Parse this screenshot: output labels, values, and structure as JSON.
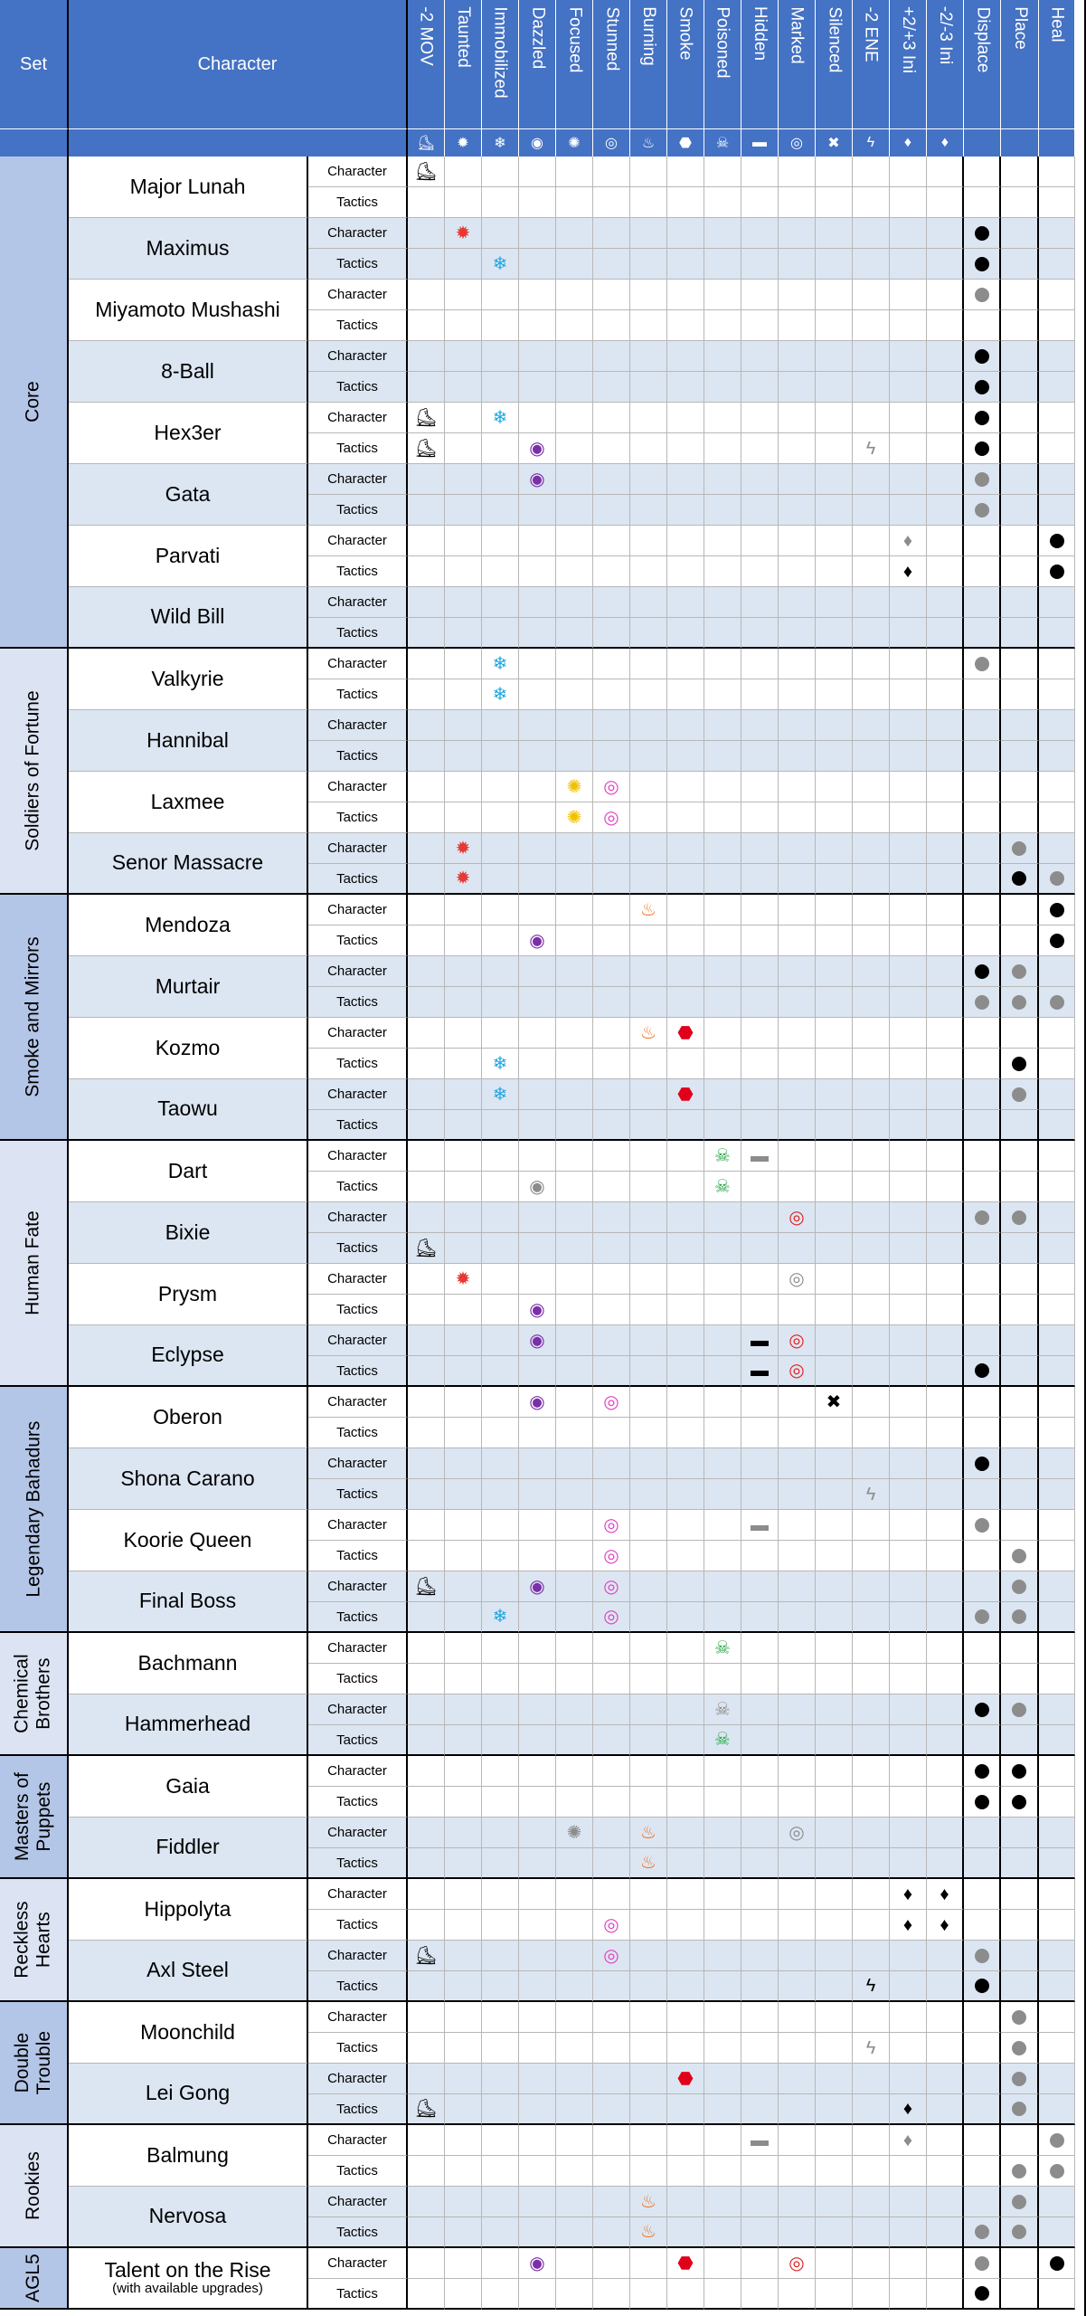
{
  "header": {
    "set_label": "Set",
    "character_label": "Character"
  },
  "columns": [
    {
      "key": "mov",
      "label": "-2 MOV",
      "icon": "boot-icon",
      "glyph": "⛸"
    },
    {
      "key": "taunted",
      "label": "Taunted",
      "icon": "anger-icon",
      "glyph": "✹"
    },
    {
      "key": "immobilized",
      "label": "Immobilized",
      "icon": "snowflake-icon",
      "glyph": "❄"
    },
    {
      "key": "dazzled",
      "label": "Dazzled",
      "icon": "eye-slash-icon",
      "glyph": "◉"
    },
    {
      "key": "focused",
      "label": "Focused",
      "icon": "swirl-icon",
      "glyph": "✺"
    },
    {
      "key": "stunned",
      "label": "Stunned",
      "icon": "spiral-icon",
      "glyph": "◎"
    },
    {
      "key": "burning",
      "label": "Burning",
      "icon": "flame-icon",
      "glyph": "♨"
    },
    {
      "key": "smoke",
      "label": "Smoke",
      "icon": "octagon-icon",
      "glyph": "⬣"
    },
    {
      "key": "poisoned",
      "label": "Poisoned",
      "icon": "skull-icon",
      "glyph": "☠"
    },
    {
      "key": "hidden",
      "label": "Hidden",
      "icon": "mask-icon",
      "glyph": "▬"
    },
    {
      "key": "marked",
      "label": "Marked",
      "icon": "target-icon",
      "glyph": "◎"
    },
    {
      "key": "silenced",
      "label": "Silenced",
      "icon": "silence-icon",
      "glyph": "✖"
    },
    {
      "key": "ene",
      "label": "-2 ENE",
      "icon": "lightning-icon",
      "glyph": "ϟ"
    },
    {
      "key": "ini_up",
      "label": "+2/+3 Ini",
      "icon": "drop-icon",
      "glyph": "♦"
    },
    {
      "key": "ini_down",
      "label": "-2/-3 Ini",
      "icon": "drop-icon",
      "glyph": "♦"
    },
    {
      "key": "displace",
      "label": "Displace",
      "icon": "",
      "glyph": ""
    },
    {
      "key": "place",
      "label": "Place",
      "icon": "",
      "glyph": ""
    },
    {
      "key": "heal",
      "label": "Heal",
      "icon": "",
      "glyph": ""
    }
  ],
  "row_labels": {
    "character": "Character",
    "tactics": "Tactics"
  },
  "colors": {
    "mov": "#000000",
    "taunted": "#e53935",
    "immobilized": "#1fa7e0",
    "dazzled": "#7b2fa8",
    "focused": "#f0c000",
    "stunned": "#e040c0",
    "burning": "#f07020",
    "smoke": "#e0001a",
    "poisoned": "#2aa84a",
    "hidden": "#000000",
    "marked": "#e02020",
    "silenced": "#000000",
    "ene": "#000000",
    "ini_up": "#000000",
    "ini_down": "#000000",
    "gray": "#8c8c8c",
    "dot": "#000000"
  },
  "sets": [
    {
      "name": "Core",
      "lines": [
        "Core"
      ],
      "characters": [
        {
          "name": "Major Lunah",
          "rows": [
            {
              "mov": "b"
            },
            {}
          ]
        },
        {
          "name": "Maximus",
          "rows": [
            {
              "taunted": "c",
              "displace": "b"
            },
            {
              "immobilized": "c",
              "displace": "b"
            }
          ]
        },
        {
          "name": "Miyamoto Mushashi",
          "rows": [
            {
              "displace": "g"
            },
            {}
          ]
        },
        {
          "name": "8-Ball",
          "rows": [
            {
              "displace": "b"
            },
            {
              "displace": "b"
            }
          ]
        },
        {
          "name": "Hex3er",
          "rows": [
            {
              "mov": "b",
              "immobilized": "c",
              "displace": "b"
            },
            {
              "mov": "b",
              "dazzled": "c",
              "ene": "g",
              "displace": "b"
            }
          ]
        },
        {
          "name": "Gata",
          "rows": [
            {
              "dazzled": "c",
              "displace": "g"
            },
            {
              "displace": "g"
            }
          ]
        },
        {
          "name": "Parvati",
          "rows": [
            {
              "ini_up": "g",
              "heal": "b"
            },
            {
              "ini_up": "b",
              "heal": "b"
            }
          ]
        },
        {
          "name": "Wild Bill",
          "rows": [
            {},
            {}
          ]
        }
      ]
    },
    {
      "name": "Soldiers of Fortune",
      "lines": [
        "Soldiers of Fortune"
      ],
      "characters": [
        {
          "name": "Valkyrie",
          "rows": [
            {
              "immobilized": "c",
              "displace": "g"
            },
            {
              "immobilized": "c"
            }
          ]
        },
        {
          "name": "Hannibal",
          "rows": [
            {},
            {}
          ]
        },
        {
          "name": "Laxmee",
          "rows": [
            {
              "focused": "c",
              "stunned": "c"
            },
            {
              "focused": "c",
              "stunned": "c"
            }
          ]
        },
        {
          "name": "Senor Massacre",
          "rows": [
            {
              "taunted": "c",
              "place": "g"
            },
            {
              "taunted": "c",
              "place": "b",
              "heal": "g"
            }
          ]
        }
      ]
    },
    {
      "name": "Smoke and Mirrors",
      "lines": [
        "Smoke and Mirrors"
      ],
      "characters": [
        {
          "name": "Mendoza",
          "rows": [
            {
              "burning": "c",
              "heal": "b"
            },
            {
              "dazzled": "c",
              "heal": "b"
            }
          ]
        },
        {
          "name": "Murtair",
          "rows": [
            {
              "displace": "b",
              "place": "g"
            },
            {
              "displace": "g",
              "place": "g",
              "heal": "g"
            }
          ]
        },
        {
          "name": "Kozmo",
          "rows": [
            {
              "burning": "c",
              "smoke": "c"
            },
            {
              "immobilized": "c",
              "place": "b"
            }
          ]
        },
        {
          "name": "Taowu",
          "rows": [
            {
              "immobilized": "c",
              "smoke": "c",
              "place": "g"
            },
            {}
          ]
        }
      ]
    },
    {
      "name": "Human Fate",
      "lines": [
        "Human Fate"
      ],
      "characters": [
        {
          "name": "Dart",
          "rows": [
            {
              "poisoned": "c",
              "hidden": "g"
            },
            {
              "dazzled": "g",
              "poisoned": "c"
            }
          ]
        },
        {
          "name": "Bixie",
          "rows": [
            {
              "marked": "c",
              "displace": "g",
              "place": "g"
            },
            {
              "mov": "b"
            }
          ]
        },
        {
          "name": "Prysm",
          "rows": [
            {
              "taunted": "c",
              "marked": "g"
            },
            {
              "dazzled": "c"
            }
          ]
        },
        {
          "name": "Eclypse",
          "rows": [
            {
              "dazzled": "c",
              "hidden": "b",
              "marked": "c"
            },
            {
              "hidden": "b",
              "marked": "c",
              "displace": "b"
            }
          ]
        }
      ]
    },
    {
      "name": "Legendary Bahadurs",
      "lines": [
        "Legendary Bahadurs"
      ],
      "characters": [
        {
          "name": "Oberon",
          "rows": [
            {
              "dazzled": "c",
              "stunned": "c",
              "silenced": "b"
            },
            {}
          ]
        },
        {
          "name": "Shona Carano",
          "rows": [
            {
              "displace": "b"
            },
            {
              "ene": "g"
            }
          ]
        },
        {
          "name": "Koorie Queen",
          "rows": [
            {
              "stunned": "c",
              "hidden": "g",
              "displace": "g"
            },
            {
              "stunned": "c",
              "place": "g"
            }
          ]
        },
        {
          "name": "Final Boss",
          "rows": [
            {
              "mov": "b",
              "dazzled": "c",
              "stunned": "c",
              "place": "g"
            },
            {
              "immobilized": "c",
              "stunned": "c",
              "displace": "g",
              "place": "g"
            }
          ]
        }
      ]
    },
    {
      "name": "Chemical Brothers",
      "lines": [
        "Chemical",
        "Brothers"
      ],
      "characters": [
        {
          "name": "Bachmann",
          "rows": [
            {
              "poisoned": "c"
            },
            {}
          ]
        },
        {
          "name": "Hammerhead",
          "rows": [
            {
              "poisoned": "g",
              "displace": "b",
              "place": "g"
            },
            {
              "poisoned": "c"
            }
          ]
        }
      ]
    },
    {
      "name": "Masters of Puppets",
      "lines": [
        "Masters of",
        "Puppets"
      ],
      "characters": [
        {
          "name": "Gaia",
          "rows": [
            {
              "displace": "b",
              "place": "b"
            },
            {
              "displace": "b",
              "place": "b"
            }
          ]
        },
        {
          "name": "Fiddler",
          "rows": [
            {
              "focused": "g",
              "burning": "c",
              "marked": "g"
            },
            {
              "burning": "c"
            }
          ]
        }
      ]
    },
    {
      "name": "Reckless Hearts",
      "lines": [
        "Reckless",
        "Hearts"
      ],
      "characters": [
        {
          "name": "Hippolyta",
          "rows": [
            {
              "ini_up": "b",
              "ini_down": "b"
            },
            {
              "stunned": "c",
              "ini_up": "b",
              "ini_down": "b"
            }
          ]
        },
        {
          "name": "Axl Steel",
          "rows": [
            {
              "mov": "b",
              "stunned": "c",
              "displace": "g"
            },
            {
              "ene": "b",
              "displace": "b"
            }
          ]
        }
      ]
    },
    {
      "name": "Double Trouble",
      "lines": [
        "Double",
        "Trouble"
      ],
      "characters": [
        {
          "name": "Moonchild",
          "rows": [
            {
              "place": "g"
            },
            {
              "ene": "g",
              "place": "g"
            }
          ]
        },
        {
          "name": "Lei Gong",
          "rows": [
            {
              "smoke": "c",
              "place": "g"
            },
            {
              "mov": "b",
              "ini_up": "b",
              "place": "g"
            }
          ]
        }
      ]
    },
    {
      "name": "Rookies",
      "lines": [
        "Rookies"
      ],
      "characters": [
        {
          "name": "Balmung",
          "rows": [
            {
              "hidden": "g",
              "ini_up": "g",
              "heal": "g"
            },
            {
              "place": "g",
              "heal": "g"
            }
          ]
        },
        {
          "name": "Nervosa",
          "rows": [
            {
              "burning": "c",
              "place": "g"
            },
            {
              "burning": "c",
              "displace": "g",
              "place": "g"
            }
          ]
        }
      ]
    },
    {
      "name": "AGL5",
      "lines": [
        "AGL5"
      ],
      "characters": [
        {
          "name": "Talent on the Rise",
          "sub": "(with available upgrades)",
          "rows": [
            {
              "dazzled": "c",
              "smoke": "c",
              "marked": "c",
              "displace": "g",
              "heal": "b"
            },
            {
              "displace": "b"
            }
          ]
        }
      ]
    }
  ]
}
